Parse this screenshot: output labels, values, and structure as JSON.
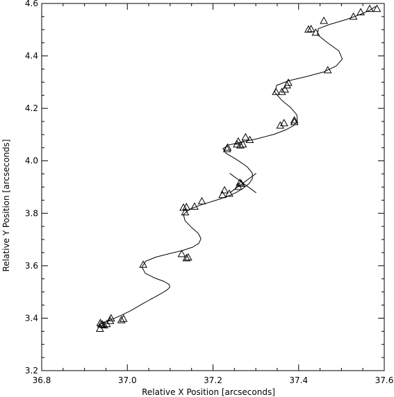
{
  "chart_data": {
    "type": "scatter",
    "xlabel": "Relative X Position [arcseconds]",
    "ylabel": "Relative Y Position [arcseconds]",
    "xlim": [
      36.8,
      37.6
    ],
    "ylim": [
      3.2,
      4.6
    ],
    "xticks": [
      "36.8",
      "37.0",
      "37.2",
      "37.4",
      "37.6"
    ],
    "yticks": [
      "3.2",
      "3.4",
      "3.6",
      "3.8",
      "4.0",
      "4.2",
      "4.4",
      "4.6"
    ],
    "grid": false,
    "series": [
      {
        "marker": "triangle",
        "x": [
          36.936,
          36.937,
          36.939,
          36.942,
          36.946,
          36.952,
          36.96,
          36.962,
          36.986,
          36.991,
          37.037,
          37.127,
          37.138,
          37.142,
          37.131,
          37.138,
          37.135,
          37.157,
          37.174,
          37.222,
          37.227,
          37.238,
          37.259,
          37.263,
          37.266,
          37.233,
          37.234,
          37.256,
          37.259,
          37.264,
          37.27,
          37.276,
          37.286,
          37.357,
          37.366,
          37.368,
          37.376,
          37.39,
          37.39,
          37.361,
          37.373,
          37.347,
          37.423,
          37.429,
          37.44,
          37.468,
          37.459,
          37.528,
          37.545,
          37.566,
          37.583
        ],
        "y": [
          3.36,
          3.382,
          3.377,
          3.376,
          3.373,
          3.378,
          3.39,
          3.4,
          3.393,
          3.398,
          3.604,
          3.645,
          3.629,
          3.632,
          3.822,
          3.824,
          3.804,
          3.826,
          3.846,
          3.87,
          3.888,
          3.875,
          3.901,
          3.917,
          3.913,
          4.045,
          4.051,
          4.063,
          4.074,
          4.059,
          4.063,
          4.09,
          4.08,
          4.135,
          4.144,
          4.272,
          4.298,
          4.148,
          4.155,
          4.263,
          4.288,
          4.263,
          4.501,
          4.503,
          4.489,
          4.346,
          4.534,
          4.55,
          4.567,
          4.58,
          4.58
        ]
      }
    ],
    "fit_curve": {
      "style": "solid line",
      "x": [
        36.935,
        36.948,
        36.961,
        36.975,
        36.99,
        37.005,
        37.02,
        37.036,
        37.052,
        37.068,
        37.082,
        37.093,
        37.099,
        37.098,
        37.086,
        37.064,
        37.042,
        37.034,
        37.043,
        37.067,
        37.098,
        37.129,
        37.153,
        37.167,
        37.172,
        37.166,
        37.15,
        37.135,
        37.131,
        37.145,
        37.172,
        37.204,
        37.232,
        37.254,
        37.271,
        37.284,
        37.292,
        37.292,
        37.28,
        37.256,
        37.231,
        37.223,
        37.238,
        37.268,
        37.305,
        37.342,
        37.37,
        37.388,
        37.397,
        37.396,
        37.382,
        37.36,
        37.344,
        37.349,
        37.378,
        37.418,
        37.459,
        37.488,
        37.502,
        37.494,
        37.466,
        37.444,
        37.446,
        37.474,
        37.512,
        37.545,
        37.567,
        37.58
      ],
      "y": [
        3.375,
        3.385,
        3.394,
        3.403,
        3.414,
        3.426,
        3.44,
        3.455,
        3.47,
        3.484,
        3.497,
        3.508,
        3.518,
        3.528,
        3.54,
        3.553,
        3.571,
        3.595,
        3.617,
        3.633,
        3.646,
        3.658,
        3.671,
        3.686,
        3.703,
        3.723,
        3.746,
        3.771,
        3.795,
        3.815,
        3.832,
        3.848,
        3.863,
        3.879,
        3.896,
        3.913,
        3.932,
        3.953,
        3.977,
        4.004,
        4.028,
        4.047,
        4.061,
        4.072,
        4.085,
        4.101,
        4.118,
        4.134,
        4.152,
        4.175,
        4.202,
        4.232,
        4.262,
        4.288,
        4.306,
        4.321,
        4.339,
        4.362,
        4.388,
        4.419,
        4.452,
        4.481,
        4.504,
        4.521,
        4.539,
        4.559,
        4.575,
        4.589
      ]
    },
    "cross_marker": {
      "x": 37.27,
      "y": 3.915
    }
  }
}
